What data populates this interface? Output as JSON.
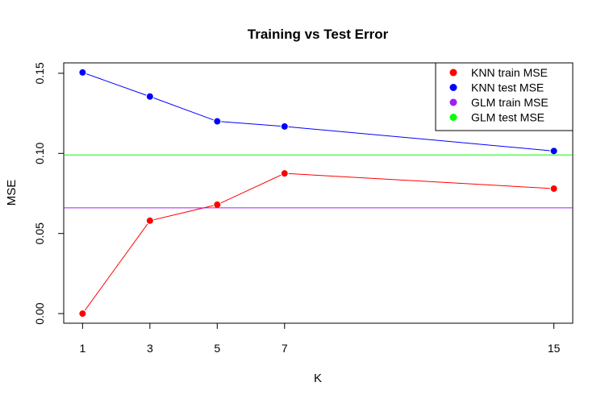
{
  "chart_data": {
    "type": "line",
    "title": "Training vs Test Error",
    "xlabel": "K",
    "ylabel": "MSE",
    "x": [
      1,
      3,
      5,
      7,
      15
    ],
    "xticks": [
      "1",
      "3",
      "5",
      "7",
      "15"
    ],
    "xlim": [
      0.44,
      15.56
    ],
    "ylim": [
      -0.006,
      0.1565
    ],
    "yticks": [
      "0.00",
      "0.05",
      "0.10",
      "0.15"
    ],
    "grid": false,
    "legend_position": "top-right",
    "series": [
      {
        "name": "KNN train MSE",
        "kind": "line-points",
        "color": "#ff0000",
        "values": [
          0.0,
          0.058,
          0.068,
          0.0875,
          0.078
        ]
      },
      {
        "name": "KNN test MSE",
        "kind": "line-points",
        "color": "#0000ff",
        "values": [
          0.1505,
          0.1355,
          0.12,
          0.1168,
          0.1015
        ]
      },
      {
        "name": "GLM train MSE",
        "kind": "hline",
        "color": "#a020f0",
        "value": 0.066
      },
      {
        "name": "GLM test MSE",
        "kind": "hline",
        "color": "#00ff00",
        "value": 0.099
      }
    ]
  }
}
